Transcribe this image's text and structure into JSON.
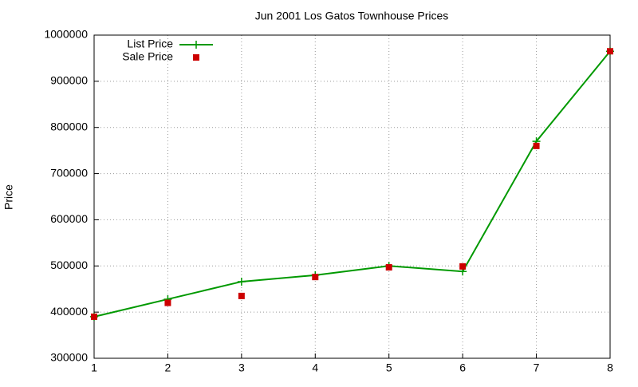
{
  "chart_data": {
    "type": "line",
    "title": "Jun 2001 Los Gatos Townhouse Prices",
    "y_label": "Price",
    "x": [
      1,
      2,
      3,
      4,
      5,
      6,
      7,
      8
    ],
    "series": [
      {
        "name": "List Price",
        "color": "#009900",
        "mode": "linespoints",
        "marker": "plus",
        "values": [
          390000,
          428000,
          466000,
          480000,
          500000,
          488000,
          770000,
          965000
        ]
      },
      {
        "name": "Sale Price",
        "color": "#cc0000",
        "mode": "points",
        "marker": "square",
        "values": [
          390000,
          420000,
          435000,
          476000,
          497000,
          499000,
          760000,
          965000
        ]
      }
    ],
    "xlim": [
      1,
      8
    ],
    "xticks": [
      1,
      2,
      3,
      4,
      5,
      6,
      7,
      8
    ],
    "ylim": [
      300000,
      1000000
    ],
    "yticks": [
      300000,
      400000,
      500000,
      600000,
      700000,
      800000,
      900000,
      1000000
    ],
    "grid": true,
    "legend": "top-left"
  }
}
